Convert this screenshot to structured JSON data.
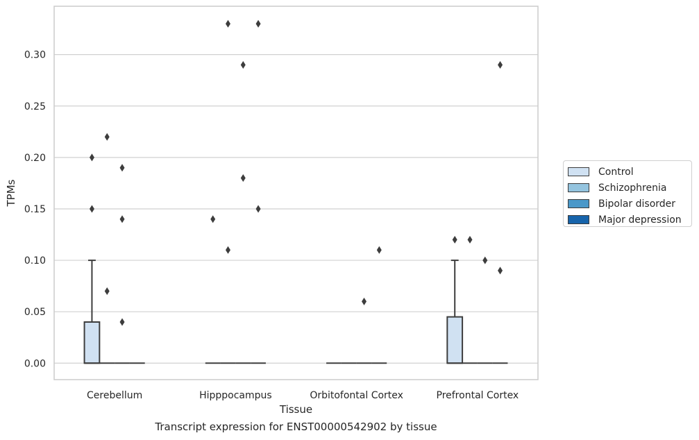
{
  "chart_data": {
    "type": "box",
    "xlabel": "Tissue",
    "ylabel": "TPMs",
    "categories": [
      "Cerebellum",
      "Hipppocampus",
      "Orbitofontal Cortex",
      "Prefrontal Cortex"
    ],
    "yticks": [
      "0.00",
      "0.05",
      "0.10",
      "0.15",
      "0.20",
      "0.25",
      "0.30"
    ],
    "ylim": [
      -0.016,
      0.347
    ],
    "grid": "horizontal",
    "legend_position": "right",
    "series": [
      {
        "name": "Control",
        "color": "#d0e1f2",
        "boxes": [
          {
            "q1": 0,
            "median": 0,
            "q3": 0.04,
            "whisker_low": 0,
            "whisker_high": 0.1,
            "outliers": [
              0.15,
              0.2
            ]
          },
          {
            "q1": 0,
            "median": 0,
            "q3": 0,
            "whisker_low": 0,
            "whisker_high": 0,
            "outliers": [
              0.14
            ]
          },
          {
            "q1": 0,
            "median": 0,
            "q3": 0,
            "whisker_low": 0,
            "whisker_high": 0,
            "outliers": []
          },
          {
            "q1": 0,
            "median": 0,
            "q3": 0.045,
            "whisker_low": 0,
            "whisker_high": 0.1,
            "outliers": [
              0.12
            ]
          }
        ]
      },
      {
        "name": "Schizophrenia",
        "color": "#94c4df",
        "boxes": [
          {
            "q1": 0,
            "median": 0,
            "q3": 0,
            "whisker_low": 0,
            "whisker_high": 0,
            "outliers": [
              0.22,
              0.07
            ]
          },
          {
            "q1": 0,
            "median": 0,
            "q3": 0,
            "whisker_low": 0,
            "whisker_high": 0,
            "outliers": [
              0.33,
              0.11
            ]
          },
          {
            "q1": 0,
            "median": 0,
            "q3": 0,
            "whisker_low": 0,
            "whisker_high": 0,
            "outliers": []
          },
          {
            "q1": 0,
            "median": 0,
            "q3": 0,
            "whisker_low": 0,
            "whisker_high": 0,
            "outliers": [
              0.12
            ]
          }
        ]
      },
      {
        "name": "Bipolar disorder",
        "color": "#4a98c9",
        "boxes": [
          {
            "q1": 0,
            "median": 0,
            "q3": 0,
            "whisker_low": 0,
            "whisker_high": 0,
            "outliers": [
              0.19,
              0.14,
              0.04
            ]
          },
          {
            "q1": 0,
            "median": 0,
            "q3": 0,
            "whisker_low": 0,
            "whisker_high": 0,
            "outliers": [
              0.29,
              0.18
            ]
          },
          {
            "q1": 0,
            "median": 0,
            "q3": 0,
            "whisker_low": 0,
            "whisker_high": 0,
            "outliers": [
              0.06
            ]
          },
          {
            "q1": 0,
            "median": 0,
            "q3": 0,
            "whisker_low": 0,
            "whisker_high": 0,
            "outliers": [
              0.1
            ]
          }
        ]
      },
      {
        "name": "Major depression",
        "color": "#1764ab",
        "boxes": [
          {
            "q1": 0,
            "median": 0,
            "q3": 0,
            "whisker_low": 0,
            "whisker_high": 0,
            "outliers": []
          },
          {
            "q1": 0,
            "median": 0,
            "q3": 0,
            "whisker_low": 0,
            "whisker_high": 0,
            "outliers": [
              0.33,
              0.15
            ]
          },
          {
            "q1": 0,
            "median": 0,
            "q3": 0,
            "whisker_low": 0,
            "whisker_high": 0,
            "outliers": [
              0.11
            ]
          },
          {
            "q1": 0,
            "median": 0,
            "q3": 0,
            "whisker_low": 0,
            "whisker_high": 0,
            "outliers": [
              0.29,
              0.09
            ]
          }
        ]
      }
    ]
  },
  "caption": "Transcript expression for ENST00000542902 by tissue"
}
